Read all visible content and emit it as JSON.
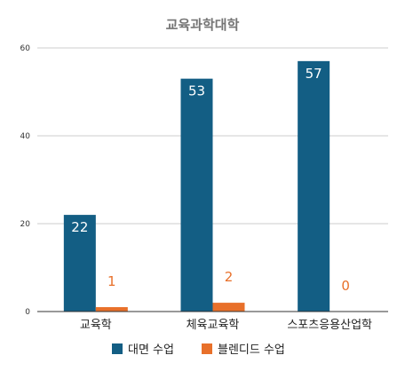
{
  "chart_data": {
    "type": "bar",
    "title": "교육과학대학",
    "categories": [
      "교육학",
      "체육교육학",
      "스포츠응용산업학"
    ],
    "series": [
      {
        "name": "대면 수업",
        "values": [
          22,
          53,
          57
        ],
        "color": "#135e84"
      },
      {
        "name": "블렌디드 수업",
        "values": [
          1,
          2,
          0
        ],
        "color": "#e8702a"
      }
    ],
    "ylim": [
      0,
      60
    ],
    "yticks": [
      0,
      20,
      40,
      60
    ],
    "grid": true,
    "legend_position": "bottom"
  }
}
